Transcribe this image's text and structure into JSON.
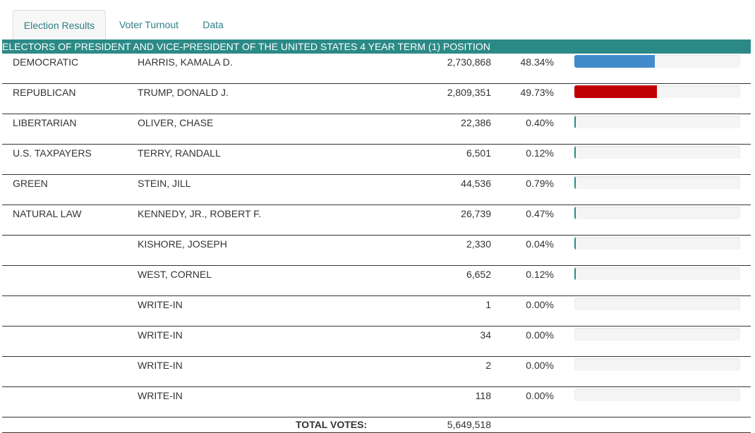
{
  "tabs": [
    {
      "label": "Election Results",
      "active": true
    },
    {
      "label": "Voter Turnout",
      "active": false
    },
    {
      "label": "Data",
      "active": false
    }
  ],
  "race": {
    "title": "ELECTORS OF PRESIDENT AND VICE-PRESIDENT OF THE UNITED STATES 4 YEAR TERM (1) POSITION",
    "header_color": "#2b8a86"
  },
  "rows": [
    {
      "party": "DEMOCRATIC",
      "candidate": "HARRIS, KAMALA D.",
      "votes": "2,730,868",
      "percent": "48.34%",
      "share": 48.34,
      "bar_color": "#428bca"
    },
    {
      "party": "REPUBLICAN",
      "candidate": "TRUMP, DONALD J.",
      "votes": "2,809,351",
      "percent": "49.73%",
      "share": 49.73,
      "bar_color": "#c00000"
    },
    {
      "party": "LIBERTARIAN",
      "candidate": "OLIVER, CHASE",
      "votes": "22,386",
      "percent": "0.40%",
      "share": 0.4,
      "bar_color": "#2b8a86"
    },
    {
      "party": "U.S. TAXPAYERS",
      "candidate": "TERRY, RANDALL",
      "votes": "6,501",
      "percent": "0.12%",
      "share": 0.12,
      "bar_color": "#2b8a86"
    },
    {
      "party": "GREEN",
      "candidate": "STEIN, JILL",
      "votes": "44,536",
      "percent": "0.79%",
      "share": 0.79,
      "bar_color": "#2b8a86"
    },
    {
      "party": "NATURAL LAW",
      "candidate": "KENNEDY, JR., ROBERT F.",
      "votes": "26,739",
      "percent": "0.47%",
      "share": 0.47,
      "bar_color": "#2b8a86"
    },
    {
      "party": "",
      "candidate": "KISHORE, JOSEPH",
      "votes": "2,330",
      "percent": "0.04%",
      "share": 0.04,
      "bar_color": "#2b8a86"
    },
    {
      "party": "",
      "candidate": "WEST, CORNEL",
      "votes": "6,652",
      "percent": "0.12%",
      "share": 0.12,
      "bar_color": "#2b8a86"
    },
    {
      "party": "",
      "candidate": "WRITE-IN",
      "votes": "1",
      "percent": "0.00%",
      "share": 0.0,
      "bar_color": "#2b8a86"
    },
    {
      "party": "",
      "candidate": "WRITE-IN",
      "votes": "34",
      "percent": "0.00%",
      "share": 0.0,
      "bar_color": "#2b8a86"
    },
    {
      "party": "",
      "candidate": "WRITE-IN",
      "votes": "2",
      "percent": "0.00%",
      "share": 0.0,
      "bar_color": "#2b8a86"
    },
    {
      "party": "",
      "candidate": "WRITE-IN",
      "votes": "118",
      "percent": "0.00%",
      "share": 0.0,
      "bar_color": "#2b8a86"
    }
  ],
  "total": {
    "label": "TOTAL VOTES:",
    "value": "5,649,518"
  }
}
